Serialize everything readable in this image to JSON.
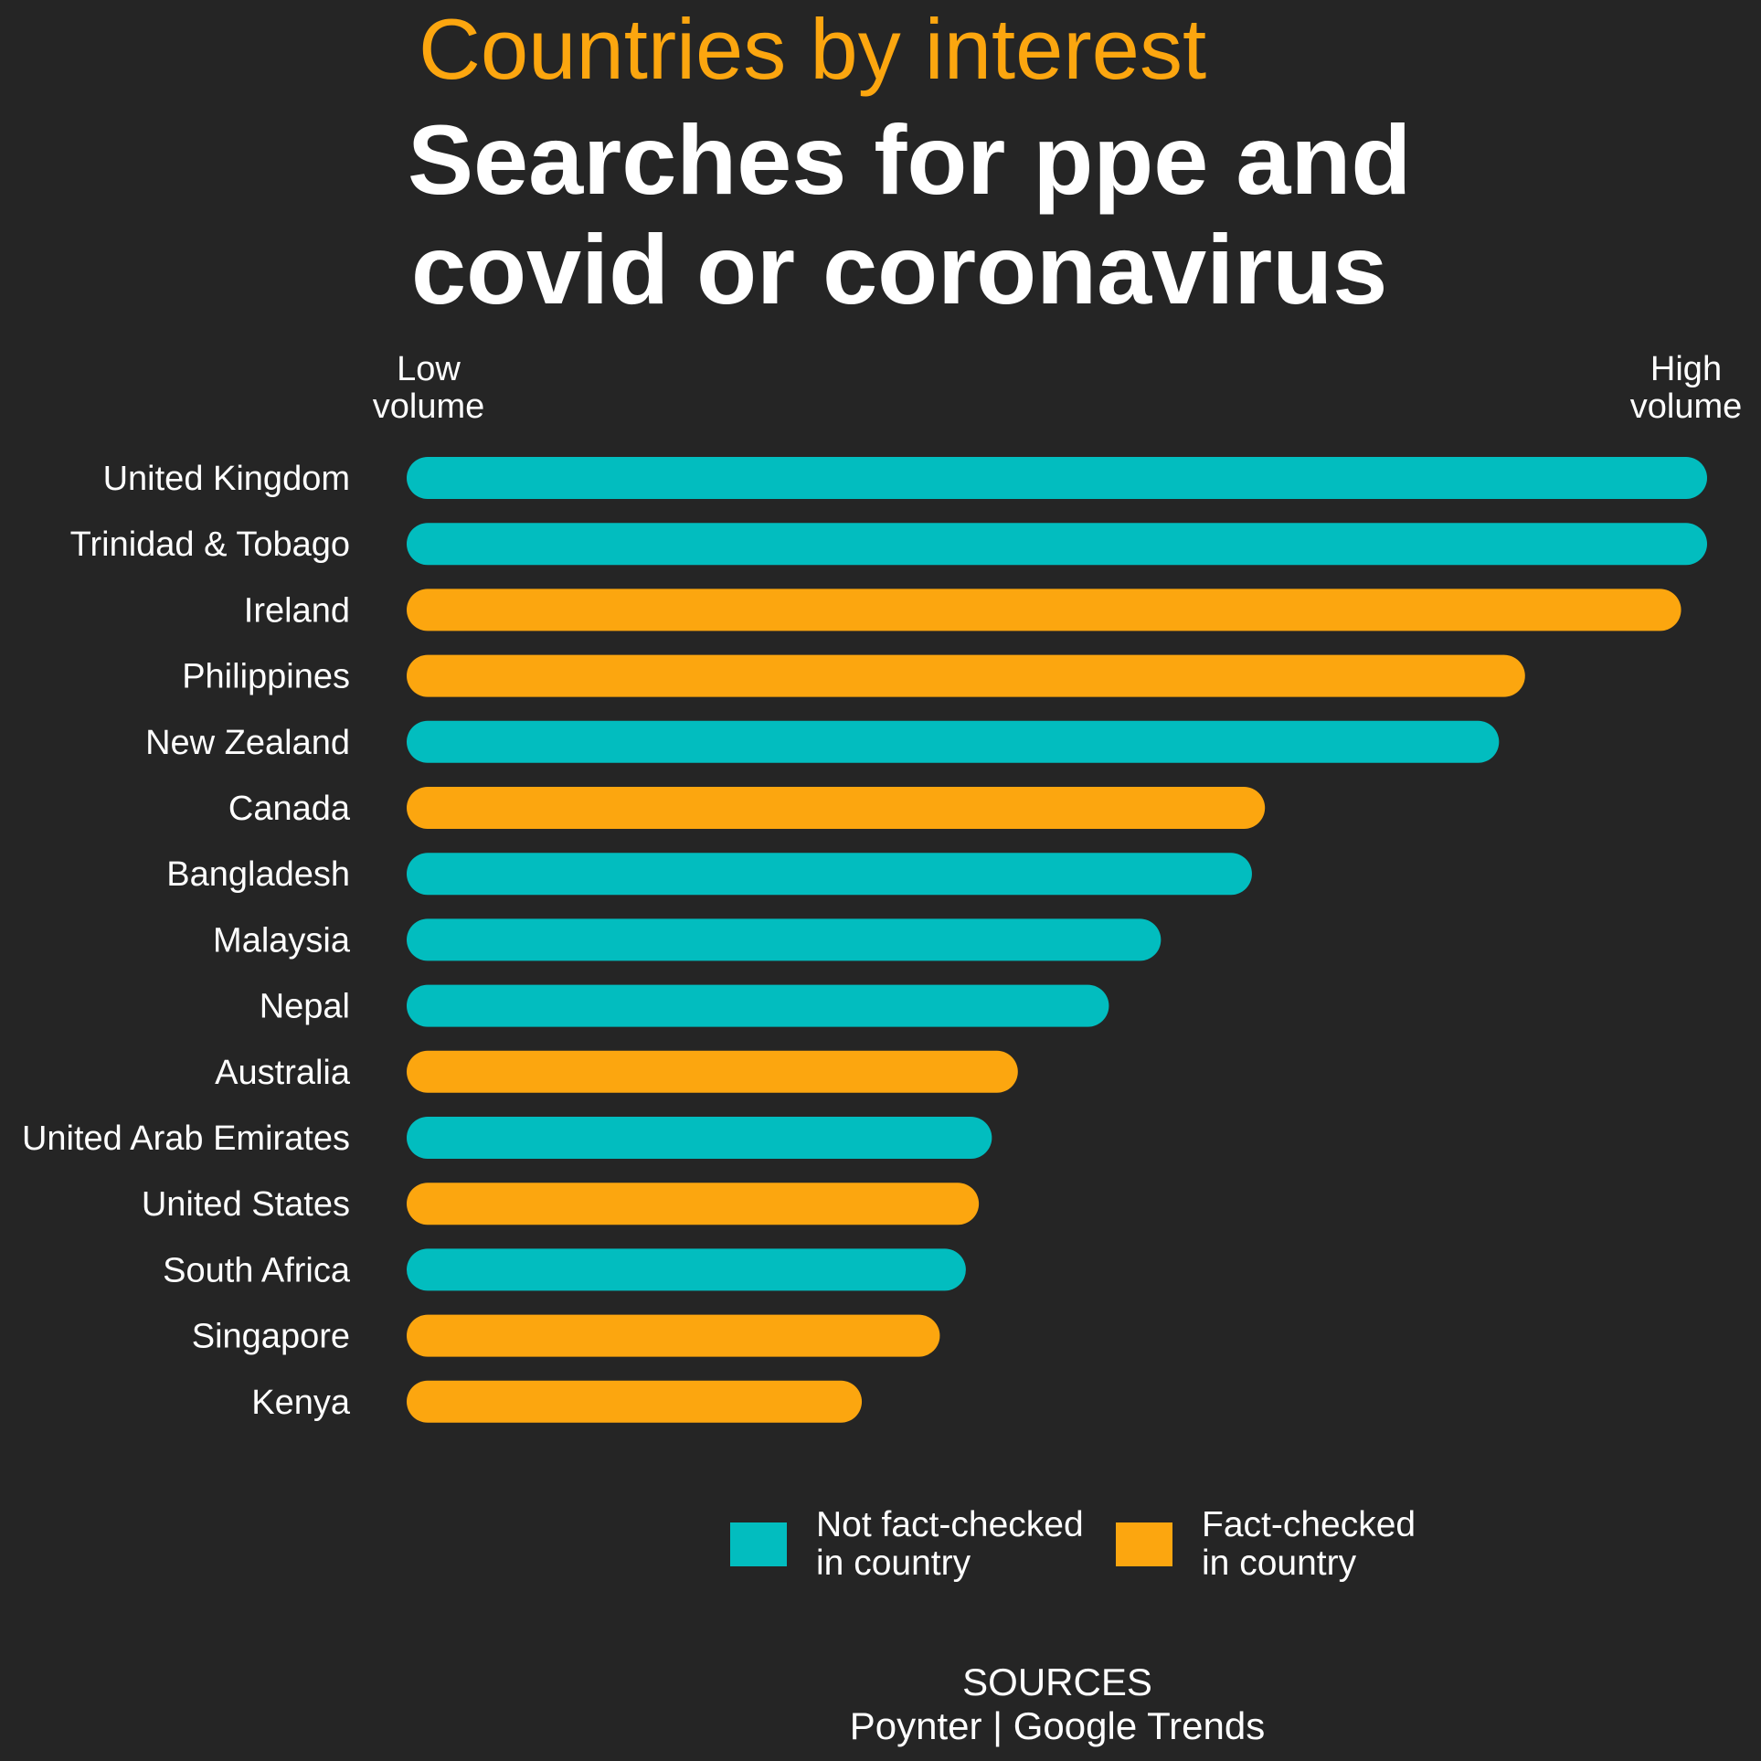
{
  "chart_data": {
    "type": "bar",
    "orientation": "horizontal",
    "kicker": "Countries by interest",
    "title_lines": [
      "Searches for ppe and",
      "covid or coronavirus"
    ],
    "scale_low_label": [
      "Low",
      "volume"
    ],
    "scale_high_label": [
      "High",
      "volume"
    ],
    "xlim": [
      0,
      100
    ],
    "categories": [
      "United Kingdom",
      "Trinidad & Tobago",
      "Ireland",
      "Philippines",
      "New Zealand",
      "Canada",
      "Bangladesh",
      "Malaysia",
      "Nepal",
      "Australia",
      "United Arab Emirates",
      "United States",
      "South Africa",
      "Singapore",
      "Kenya"
    ],
    "values": [
      100,
      100,
      98,
      86,
      84,
      66,
      65,
      58,
      54,
      47,
      45,
      44,
      43,
      41,
      35
    ],
    "groups": [
      "not_fact_checked",
      "not_fact_checked",
      "fact_checked",
      "fact_checked",
      "not_fact_checked",
      "fact_checked",
      "not_fact_checked",
      "not_fact_checked",
      "not_fact_checked",
      "fact_checked",
      "not_fact_checked",
      "fact_checked",
      "not_fact_checked",
      "fact_checked",
      "fact_checked"
    ],
    "legend": [
      {
        "key": "not_fact_checked",
        "label_lines": [
          "Not fact-checked",
          "in country"
        ],
        "color": "#02bdbf"
      },
      {
        "key": "fact_checked",
        "label_lines": [
          "Fact-checked",
          "in country"
        ],
        "color": "#fca60f"
      }
    ],
    "grid": false,
    "source_lines": [
      "SOURCES",
      "Poynter | Google Trends"
    ]
  },
  "colors": {
    "background": "#252525",
    "accent": "#fca60f",
    "teal": "#02bdbf",
    "text": "#ffffff"
  }
}
